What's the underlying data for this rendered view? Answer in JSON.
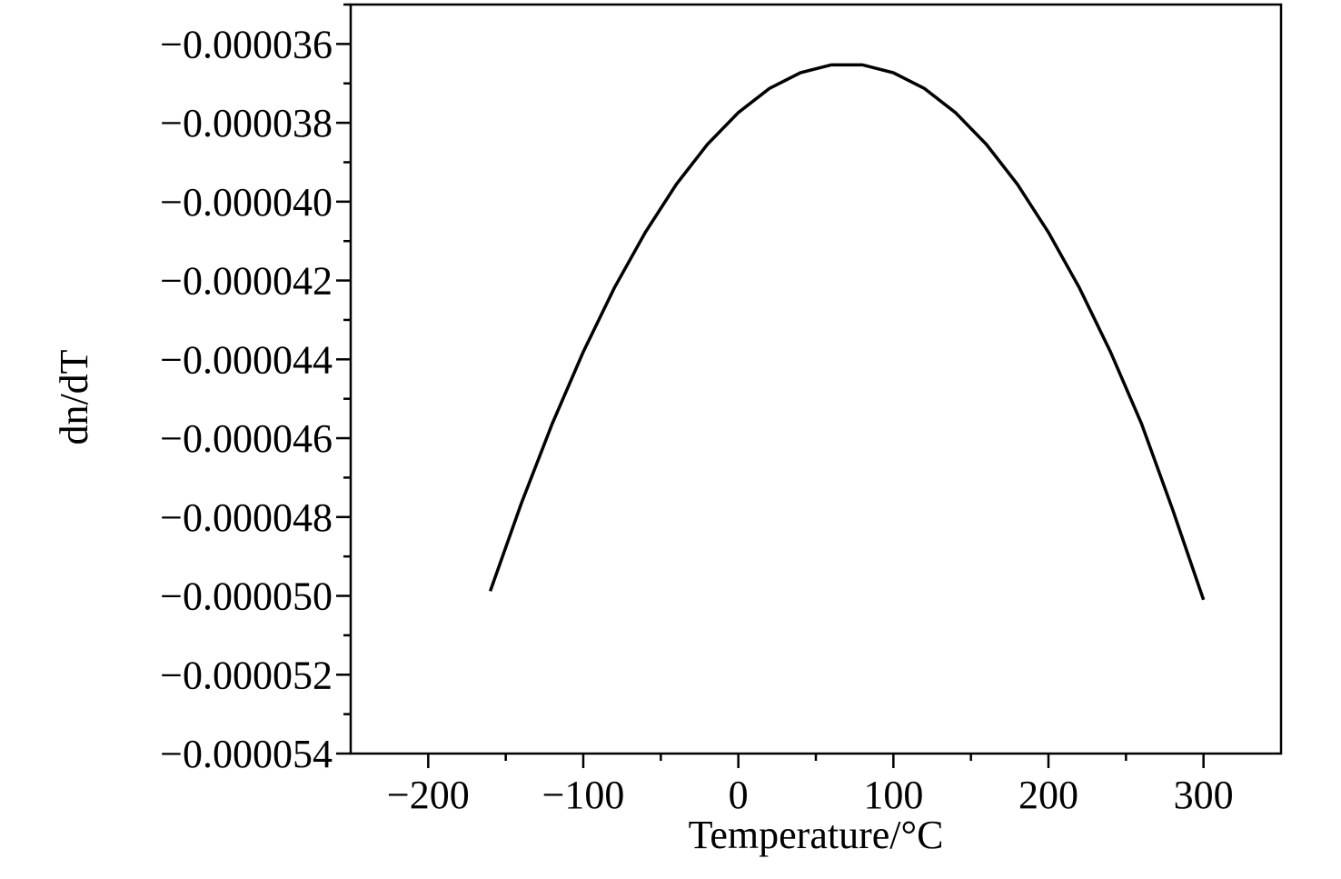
{
  "chart_data": {
    "type": "line",
    "xlabel": "Temperature/°C",
    "ylabel": "dn/dT",
    "xlim": [
      -250,
      350
    ],
    "ylim": [
      -5.4e-05,
      -3.5e-05
    ],
    "xticks": [
      {
        "value": -200,
        "label": "−200"
      },
      {
        "value": -100,
        "label": "−100"
      },
      0,
      100,
      200,
      300
    ],
    "yticks": [
      {
        "value": -3.6e-05,
        "label": "−0.000036"
      },
      {
        "value": -3.8e-05,
        "label": "−0.000038"
      },
      {
        "value": -4e-05,
        "label": "−0.000040"
      },
      {
        "value": -4.2e-05,
        "label": "−0.000042"
      },
      {
        "value": -4.4e-05,
        "label": "−0.000044"
      },
      {
        "value": -4.6e-05,
        "label": "−0.000046"
      },
      {
        "value": -4.8e-05,
        "label": "−0.000048"
      },
      {
        "value": -5e-05,
        "label": "−0.000050"
      },
      {
        "value": -5.2e-05,
        "label": "−0.000052"
      },
      {
        "value": -5.4e-05,
        "label": "−0.000054"
      }
    ],
    "xminor_ticks": [
      -150,
      -50,
      50,
      150,
      250
    ],
    "yminor_ticks": [
      -3.5e-05,
      -3.7e-05,
      -3.9e-05,
      -4.1e-05,
      -4.3e-05,
      -4.5e-05,
      -4.7e-05,
      -4.9e-05,
      -5.1e-05,
      -5.3e-05
    ],
    "x": [
      -160,
      -140,
      -120,
      -100,
      -80,
      -60,
      -40,
      -20,
      0,
      20,
      40,
      60,
      80,
      100,
      120,
      140,
      160,
      180,
      200,
      220,
      240,
      260,
      280,
      300
    ],
    "series": [
      {
        "name": "dn/dT",
        "color": "#000000",
        "values": [
          -4.988e-05,
          -4.766e-05,
          -4.563e-05,
          -4.381e-05,
          -4.219e-05,
          -4.078e-05,
          -3.956e-05,
          -3.855e-05,
          -3.774e-05,
          -3.713e-05,
          -3.673e-05,
          -3.653e-05,
          -3.653e-05,
          -3.673e-05,
          -3.713e-05,
          -3.774e-05,
          -3.855e-05,
          -3.956e-05,
          -4.078e-05,
          -4.219e-05,
          -4.381e-05,
          -4.563e-05,
          -4.78e-05,
          -5.01e-05
        ]
      }
    ],
    "grid": false
  }
}
